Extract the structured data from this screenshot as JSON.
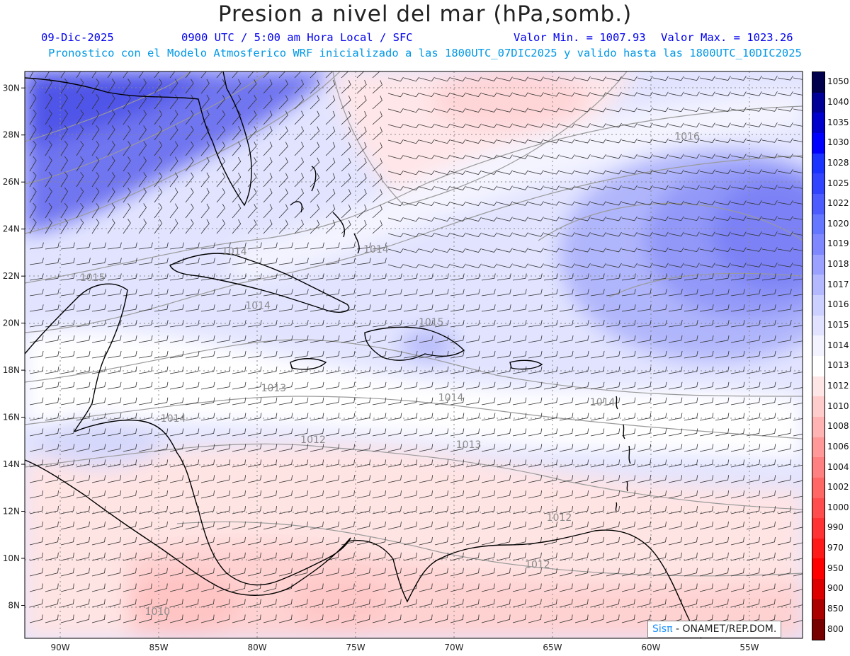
{
  "header": {
    "title": "Presion a nivel del mar (hPa,somb.)",
    "date": "09-Dic-2025",
    "time": "0900 UTC / 5:00 am Hora Local / SFC",
    "min_label": "Valor Min. = 1007.93",
    "max_label": "Valor Max. = 1023.26",
    "model_line": "Pronostico con el Modelo Atmosferico WRF inicializado a las 1800UTC_07DIC2025 y valido hasta las  1800UTC_10DIC2025"
  },
  "axes": {
    "lon_labels": [
      "90W",
      "85W",
      "80W",
      "75W",
      "70W",
      "65W",
      "60W",
      "55W"
    ],
    "lat_labels": [
      "30N",
      "28N",
      "26N",
      "24N",
      "22N",
      "20N",
      "18N",
      "16N",
      "14N",
      "12N",
      "10N",
      "8N"
    ]
  },
  "isobar_labels": [
    {
      "text": "1016",
      "lon": -58.8,
      "lat": 27.8
    },
    {
      "text": "1015",
      "lon": -89.0,
      "lat": 21.8
    },
    {
      "text": "1015",
      "lon": -71.8,
      "lat": 19.9
    },
    {
      "text": "1014",
      "lon": -81.8,
      "lat": 22.9
    },
    {
      "text": "1014",
      "lon": -80.6,
      "lat": 20.6
    },
    {
      "text": "1014",
      "lon": -74.6,
      "lat": 23.0
    },
    {
      "text": "1014",
      "lon": -70.8,
      "lat": 16.7
    },
    {
      "text": "1014",
      "lon": -84.9,
      "lat": 15.8
    },
    {
      "text": "1014",
      "lon": -63.1,
      "lat": 16.5
    },
    {
      "text": "1013",
      "lon": -79.8,
      "lat": 17.1
    },
    {
      "text": "1013",
      "lon": -69.9,
      "lat": 14.7
    },
    {
      "text": "1012",
      "lon": -77.8,
      "lat": 14.9
    },
    {
      "text": "1012",
      "lon": -65.3,
      "lat": 11.6
    },
    {
      "text": "1012",
      "lon": -66.4,
      "lat": 9.6
    },
    {
      "text": "1010",
      "lon": -85.7,
      "lat": 7.6
    }
  ],
  "legend": {
    "levels": [
      "1050",
      "1040",
      "1035",
      "1030",
      "1028",
      "1025",
      "1022",
      "1020",
      "1019",
      "1018",
      "1017",
      "1016",
      "1015",
      "1014",
      "1013",
      "1012",
      "1010",
      "1008",
      "1006",
      "1004",
      "1002",
      "1000",
      "990",
      "970",
      "950",
      "900",
      "850",
      "800"
    ],
    "colors": [
      "#00004d",
      "#000099",
      "#0000cc",
      "#0000ff",
      "#1a33ff",
      "#3344ff",
      "#4d5cff",
      "#6677ff",
      "#8088ff",
      "#9aa1ff",
      "#b3b8ff",
      "#ccd0ff",
      "#e0e2ff",
      "#f2f3ff",
      "#ffffff",
      "#ffe6e6",
      "#ffcccc",
      "#ffb3b3",
      "#ff9999",
      "#ff8080",
      "#ff6666",
      "#ff4d4d",
      "#ff3333",
      "#ff1a1a",
      "#ff0000",
      "#dd0000",
      "#aa0000",
      "#770000"
    ]
  },
  "credit": {
    "sis": "Sisπ",
    "rest": " - ONAMET/REP.DOM."
  }
}
